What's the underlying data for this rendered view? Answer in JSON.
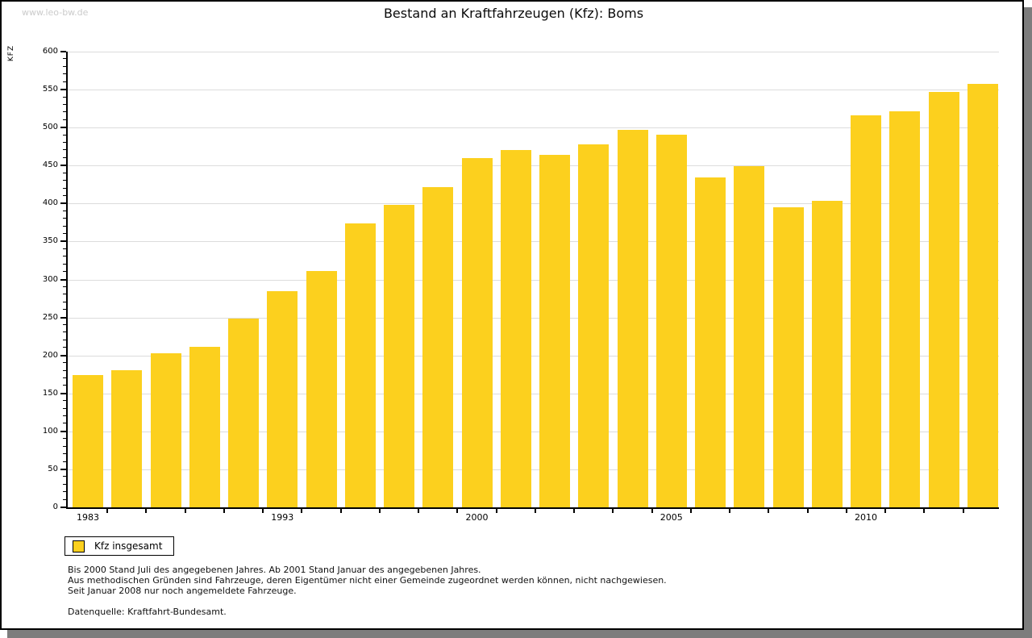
{
  "watermark": "www.leo-bw.de",
  "title": "Bestand an Kraftfahrzeugen (Kfz): Boms",
  "legend": {
    "label": "Kfz insgesamt"
  },
  "footnotes": {
    "line1": "Bis 2000 Stand Juli des angegebenen Jahres. Ab 2001 Stand Januar des angegebenen Jahres.",
    "line2": "Aus methodischen Gründen sind Fahrzeuge, deren Eigentümer nicht einer Gemeinde zugeordnet werden können, nicht nachgewiesen.",
    "line3": "Seit Januar 2008 nur noch angemeldete Fahrzeuge.",
    "source": "Datenquelle: Kraftfahrt-Bundesamt."
  },
  "chart_data": {
    "type": "bar",
    "title": "Bestand an Kraftfahrzeugen (Kfz): Boms",
    "ylabel": "KFZ",
    "ylim": [
      0,
      600
    ],
    "y_tick_step": 50,
    "y_minor_tick_step": 10,
    "grid": "horizontal",
    "bar_color": "#fcd01e",
    "grid_color": "#dcdcdc",
    "legend_entries": [
      "Kfz insgesamt"
    ],
    "legend_position": "bottom-left",
    "values": [
      174,
      181,
      203,
      211,
      249,
      285,
      311,
      374,
      398,
      422,
      460,
      471,
      464,
      478,
      497,
      491,
      434,
      449,
      395,
      404,
      516,
      521,
      547,
      558
    ],
    "x_tick_labels": [
      {
        "bar_index": 0,
        "label": "1983"
      },
      {
        "bar_index": 5,
        "label": "1993"
      },
      {
        "bar_index": 10,
        "label": "2000"
      },
      {
        "bar_index": 15,
        "label": "2005"
      },
      {
        "bar_index": 20,
        "label": "2010"
      }
    ]
  }
}
